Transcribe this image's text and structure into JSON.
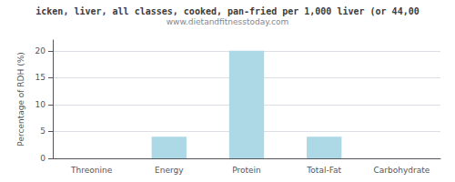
{
  "chart_data": {
    "type": "bar",
    "title": "icken, liver, all classes, cooked, pan-fried per 1,000 liver (or 44,00",
    "subtitle": "www.dietandfitnesstoday.com",
    "categories": [
      "Threonine",
      "Energy",
      "Protein",
      "Total-Fat",
      "Carbohydrate"
    ],
    "values": [
      0,
      4,
      20,
      4,
      0
    ],
    "color": "#add8e6",
    "ylabel": "Percentage of RDH (%)",
    "ylim": [
      0,
      22
    ],
    "yticks": [
      0,
      5,
      10,
      15,
      20
    ],
    "grid": true
  }
}
